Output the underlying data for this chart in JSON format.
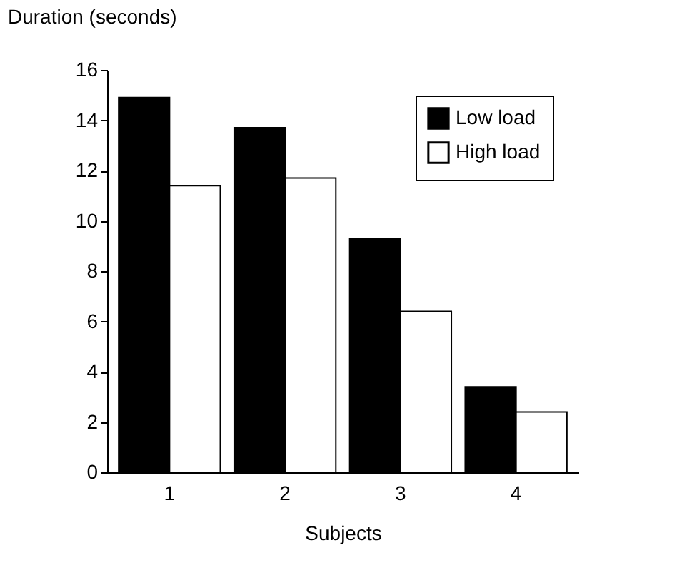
{
  "chart_data": {
    "type": "bar",
    "xlabel": "Subjects",
    "ylabel": "Duration (seconds)",
    "categories": [
      "1",
      "2",
      "3",
      "4"
    ],
    "series": [
      {
        "name": "Low load",
        "color": "#000000",
        "values": [
          14.9,
          13.7,
          9.3,
          3.4
        ]
      },
      {
        "name": "High load",
        "color": "#ffffff",
        "values": [
          11.4,
          11.7,
          6.4,
          2.4
        ]
      }
    ],
    "ylim": [
      0,
      16
    ],
    "yticks": [
      0,
      2,
      4,
      6,
      8,
      10,
      12,
      14,
      16
    ],
    "grid": false,
    "legend": "top right"
  }
}
